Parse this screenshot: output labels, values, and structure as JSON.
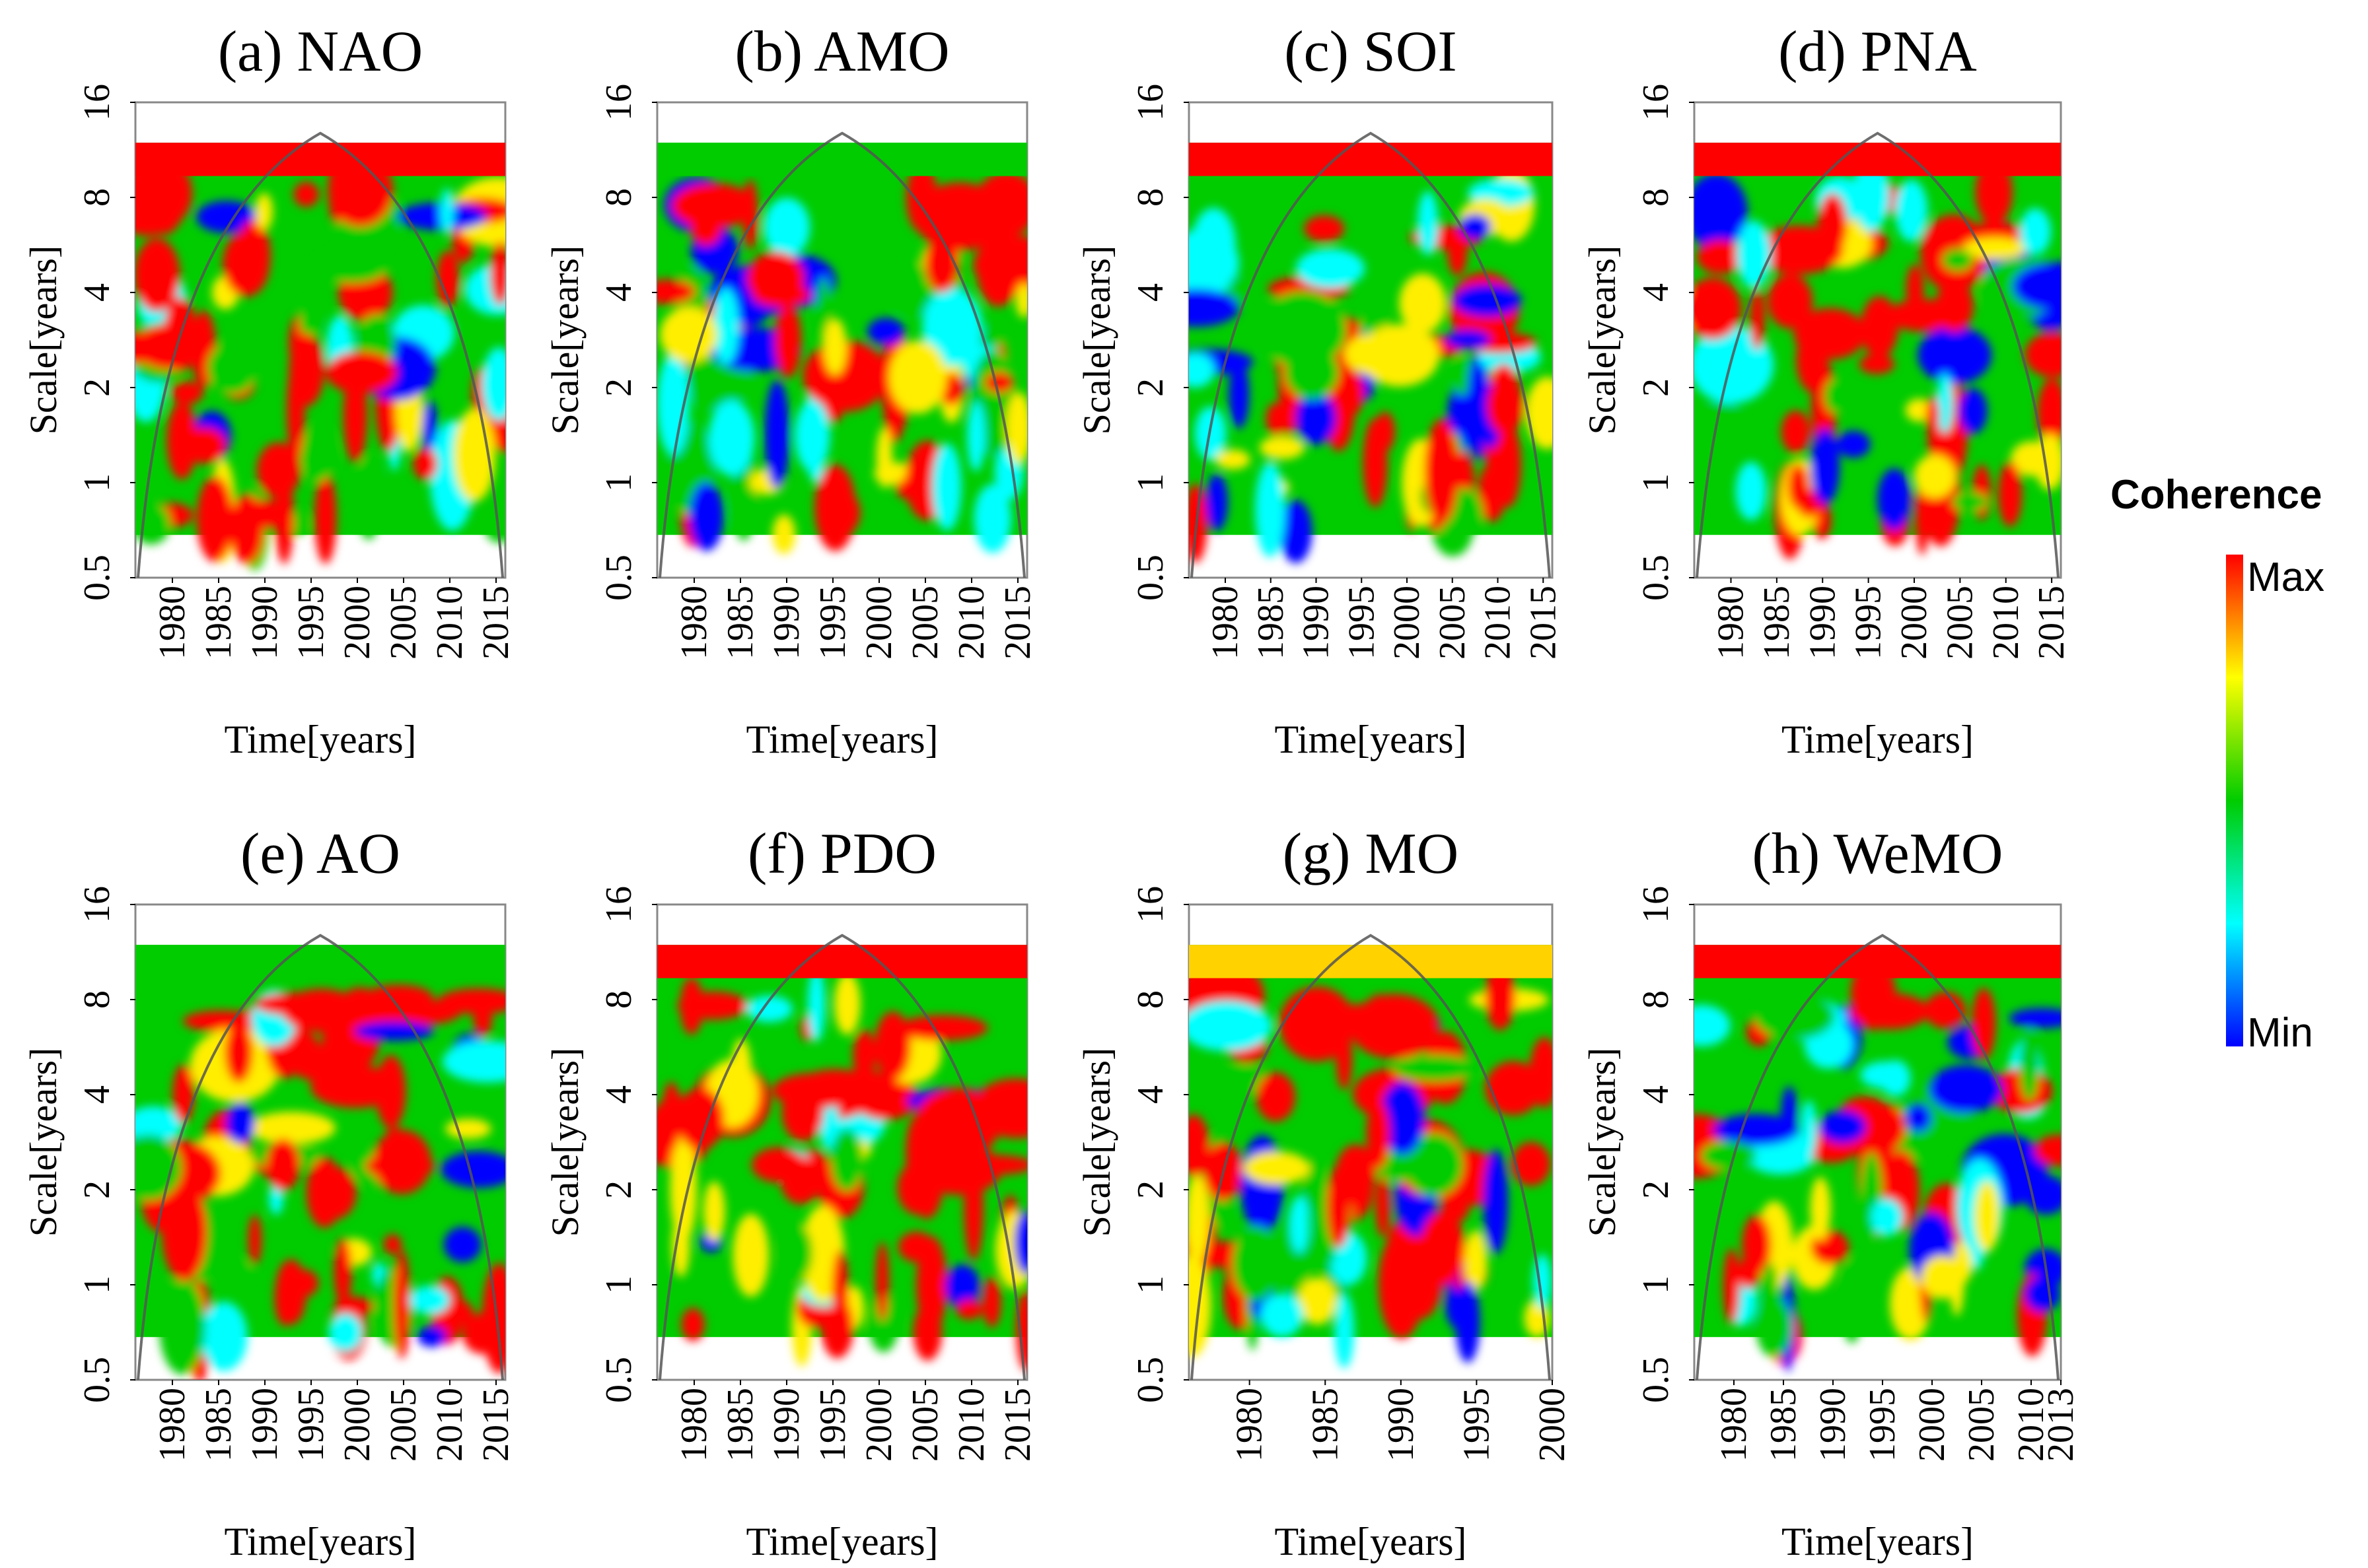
{
  "figure": {
    "legend": {
      "title": "Coherence",
      "max_label": "Max",
      "min_label": "Min",
      "colors": [
        "#0000ff",
        "#00ffff",
        "#00cc00",
        "#ffff00",
        "#ff0000"
      ]
    }
  },
  "chart_data": [
    {
      "type": "heatmap",
      "title": "(a) NAO",
      "xlabel": "Time[years]",
      "ylabel": "Scale[years]",
      "x_ticks": [
        1980,
        1985,
        1990,
        1995,
        2000,
        2005,
        2010,
        2015
      ],
      "y_ticks": [
        "0.5",
        "1",
        "2",
        "4",
        "8",
        "16"
      ],
      "xlim": [
        1976,
        2016
      ],
      "ylim": [
        0.5,
        16
      ],
      "top_band": "red",
      "cone_peak": 1996
    },
    {
      "type": "heatmap",
      "title": "(b) AMO",
      "xlabel": "Time[years]",
      "ylabel": "Scale[years]",
      "x_ticks": [
        1980,
        1985,
        1990,
        1995,
        2000,
        2005,
        2010,
        2015
      ],
      "y_ticks": [
        "0.5",
        "1",
        "2",
        "4",
        "8",
        "16"
      ],
      "xlim": [
        1976,
        2016
      ],
      "ylim": [
        0.5,
        16
      ],
      "top_band": "green",
      "cone_peak": 1996
    },
    {
      "type": "heatmap",
      "title": "(c) SOI",
      "xlabel": "Time[years]",
      "ylabel": "Scale[years]",
      "x_ticks": [
        1980,
        1985,
        1990,
        1995,
        2000,
        2005,
        2010,
        2015
      ],
      "y_ticks": [
        "0.5",
        "1",
        "2",
        "4",
        "8",
        "16"
      ],
      "xlim": [
        1976,
        2016
      ],
      "ylim": [
        0.5,
        16
      ],
      "top_band": "red",
      "cone_peak": 1996
    },
    {
      "type": "heatmap",
      "title": "(d) PNA",
      "xlabel": "Time[years]",
      "ylabel": "Scale[years]",
      "x_ticks": [
        1980,
        1985,
        1990,
        1995,
        2000,
        2005,
        2010,
        2015
      ],
      "y_ticks": [
        "0.5",
        "1",
        "2",
        "4",
        "8",
        "16"
      ],
      "xlim": [
        1976,
        2016
      ],
      "ylim": [
        0.5,
        16
      ],
      "top_band": "red",
      "cone_peak": 1996
    },
    {
      "type": "heatmap",
      "title": "(e) AO",
      "xlabel": "Time[years]",
      "ylabel": "Scale[years]",
      "x_ticks": [
        1980,
        1985,
        1990,
        1995,
        2000,
        2005,
        2010,
        2015
      ],
      "y_ticks": [
        "0.5",
        "1",
        "2",
        "4",
        "8",
        "16"
      ],
      "xlim": [
        1976,
        2016
      ],
      "ylim": [
        0.5,
        16
      ],
      "top_band": "green",
      "cone_peak": 1996
    },
    {
      "type": "heatmap",
      "title": "(f) PDO",
      "xlabel": "Time[years]",
      "ylabel": "Scale[years]",
      "x_ticks": [
        1980,
        1985,
        1990,
        1995,
        2000,
        2005,
        2010,
        2015
      ],
      "y_ticks": [
        "0.5",
        "1",
        "2",
        "4",
        "8",
        "16"
      ],
      "xlim": [
        1976,
        2016
      ],
      "ylim": [
        0.5,
        16
      ],
      "top_band": "red",
      "cone_peak": 1996
    },
    {
      "type": "heatmap",
      "title": "(g) MO",
      "xlabel": "Time[years]",
      "ylabel": "Scale[years]",
      "x_ticks": [
        1980,
        1985,
        1990,
        1995,
        2000
      ],
      "y_ticks": [
        "0.5",
        "1",
        "2",
        "4",
        "8",
        "16"
      ],
      "xlim": [
        1976,
        2000
      ],
      "ylim": [
        0.5,
        16
      ],
      "top_band": "yellow",
      "cone_peak": 1988
    },
    {
      "type": "heatmap",
      "title": "(h) WeMO",
      "xlabel": "Time[years]",
      "ylabel": "Scale[years]",
      "x_ticks": [
        1980,
        1985,
        1990,
        1995,
        2000,
        2005,
        2010,
        2013
      ],
      "y_ticks": [
        "0.5",
        "1",
        "2",
        "4",
        "8",
        "16"
      ],
      "xlim": [
        1976,
        2013
      ],
      "ylim": [
        0.5,
        16
      ],
      "top_band": "red",
      "cone_peak": 1995
    }
  ]
}
